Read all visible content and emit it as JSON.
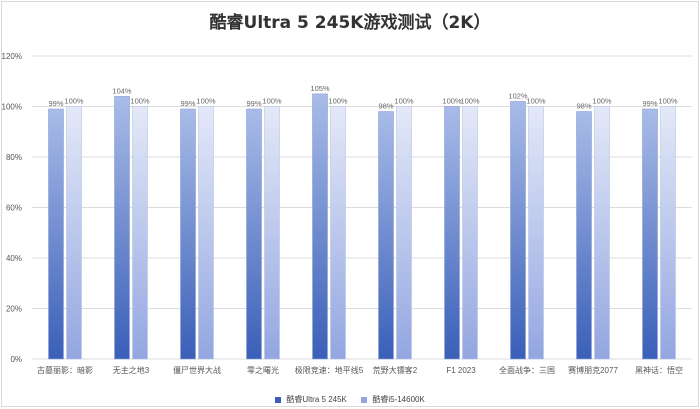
{
  "chart_data": {
    "type": "bar",
    "title": "酷睿Ultra 5 245K游戏测试（2K）",
    "categories": [
      "古墓丽影：暗影",
      "无主之地3",
      "僵尸世界大战",
      "零之曙光",
      "极限竞速：地平线5",
      "荒野大镖客2",
      "F1 2023",
      "全面战争：三国",
      "赛博朋克2077",
      "黑神话：悟空"
    ],
    "series": [
      {
        "name": "酷睿Ultra 5 245K",
        "values": [
          99,
          104,
          99,
          99,
          105,
          98,
          100,
          102,
          98,
          99
        ],
        "labels": [
          "99%",
          "104%",
          "99%",
          "99%",
          "105%",
          "98%",
          "100%",
          "102%",
          "98%",
          "99%"
        ]
      },
      {
        "name": "酷睿i5-14600K",
        "values": [
          100,
          100,
          100,
          100,
          100,
          100,
          100,
          100,
          100,
          100
        ],
        "labels": [
          "100%",
          "100%",
          "100%",
          "100%",
          "100%",
          "100%",
          "100%",
          "100%",
          "100%",
          "100%"
        ]
      }
    ],
    "ylim": [
      0,
      120
    ],
    "yticks": [
      "0%",
      "20%",
      "40%",
      "60%",
      "80%",
      "100%",
      "120%"
    ],
    "grid": true,
    "legend_position": "bottom",
    "colors": {
      "s1_top": "#a9bce8",
      "s1_bottom": "#3a5fb8",
      "s2_top": "#e4e9f8",
      "s2_bottom": "#93a6e0"
    }
  }
}
